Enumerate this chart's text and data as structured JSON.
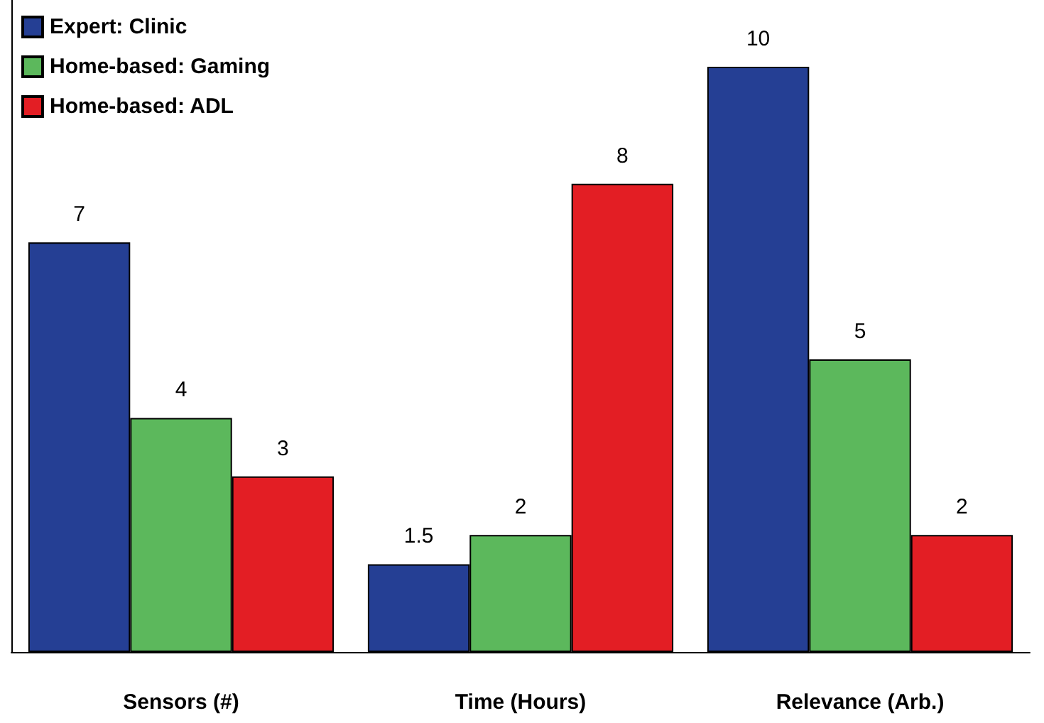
{
  "chart_data": {
    "type": "bar",
    "categories": [
      "Sensors (#)",
      "Time (Hours)",
      "Relevance (Arb.)"
    ],
    "series": [
      {
        "name": "Expert: Clinic",
        "color": "#253f94",
        "values": [
          7,
          1.5,
          10
        ]
      },
      {
        "name": "Home-based: Gaming",
        "color": "#5cb85c",
        "values": [
          4,
          2,
          5
        ]
      },
      {
        "name": "Home-based: ADL",
        "color": "#e31e24",
        "values": [
          3,
          8,
          2
        ]
      }
    ],
    "data_labels": true,
    "legend": "top left",
    "grid": false,
    "tick_labels": "x"
  }
}
